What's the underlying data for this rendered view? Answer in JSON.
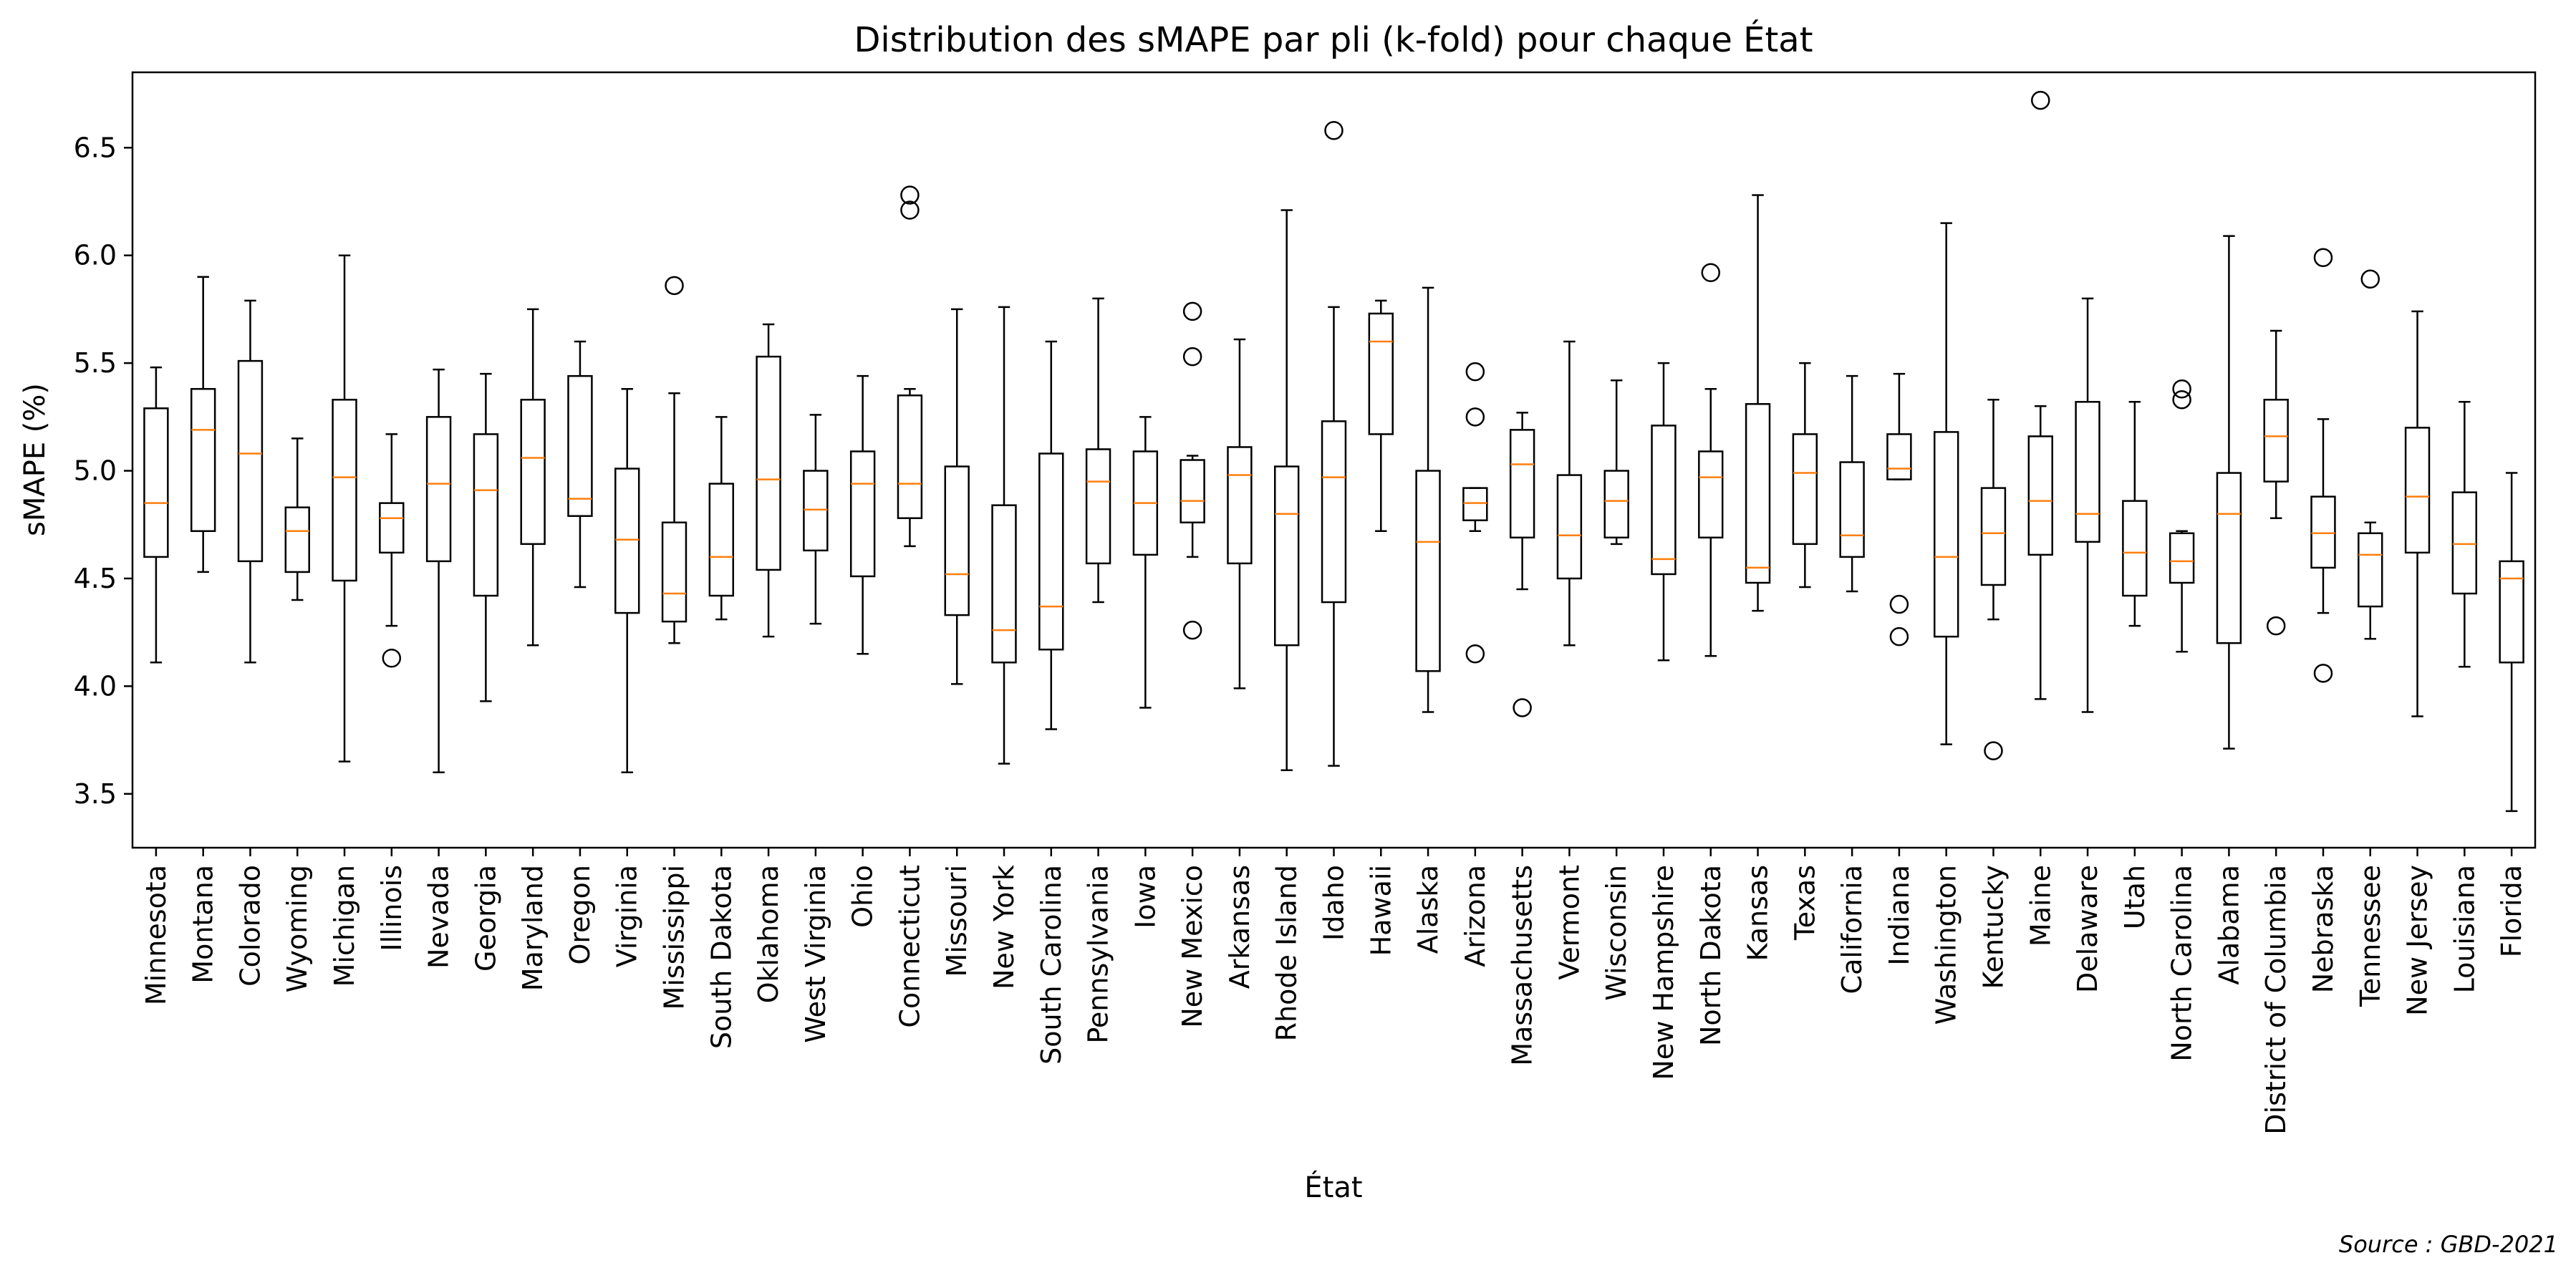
{
  "chart_data": {
    "type": "boxplot",
    "title": "Distribution des sMAPE par pli (k-fold) pour chaque État",
    "xlabel": "État",
    "ylabel": "sMAPE (%)",
    "source": "Source : GBD-2021",
    "ylim": [
      3.25,
      6.85
    ],
    "yticks": [
      3.5,
      4.0,
      4.5,
      5.0,
      5.5,
      6.0,
      6.5
    ],
    "ytick_labels": [
      "3.5",
      "4.0",
      "4.5",
      "5.0",
      "5.5",
      "6.0",
      "6.5"
    ],
    "grid": false,
    "colors": {
      "box": "#000000",
      "median": "#ff7f0e"
    },
    "boxes": [
      {
        "name": "Minnesota",
        "whislo": 4.11,
        "q1": 4.6,
        "med": 4.85,
        "q3": 5.29,
        "whishi": 5.48,
        "fliers": []
      },
      {
        "name": "Montana",
        "whislo": 4.53,
        "q1": 4.72,
        "med": 5.19,
        "q3": 5.38,
        "whishi": 5.9,
        "fliers": []
      },
      {
        "name": "Colorado",
        "whislo": 4.11,
        "q1": 4.58,
        "med": 5.08,
        "q3": 5.51,
        "whishi": 5.79,
        "fliers": []
      },
      {
        "name": "Wyoming",
        "whislo": 4.4,
        "q1": 4.53,
        "med": 4.72,
        "q3": 4.83,
        "whishi": 5.15,
        "fliers": []
      },
      {
        "name": "Michigan",
        "whislo": 3.65,
        "q1": 4.49,
        "med": 4.97,
        "q3": 5.33,
        "whishi": 6.0,
        "fliers": []
      },
      {
        "name": "Illinois",
        "whislo": 4.28,
        "q1": 4.62,
        "med": 4.78,
        "q3": 4.85,
        "whishi": 5.17,
        "fliers": [
          4.13
        ]
      },
      {
        "name": "Nevada",
        "whislo": 3.6,
        "q1": 4.58,
        "med": 4.94,
        "q3": 5.25,
        "whishi": 5.47,
        "fliers": []
      },
      {
        "name": "Georgia",
        "whislo": 3.93,
        "q1": 4.42,
        "med": 4.91,
        "q3": 5.17,
        "whishi": 5.45,
        "fliers": []
      },
      {
        "name": "Maryland",
        "whislo": 4.19,
        "q1": 4.66,
        "med": 5.06,
        "q3": 5.33,
        "whishi": 5.75,
        "fliers": []
      },
      {
        "name": "Oregon",
        "whislo": 4.46,
        "q1": 4.79,
        "med": 4.87,
        "q3": 5.44,
        "whishi": 5.6,
        "fliers": []
      },
      {
        "name": "Virginia",
        "whislo": 3.6,
        "q1": 4.34,
        "med": 4.68,
        "q3": 5.01,
        "whishi": 5.38,
        "fliers": []
      },
      {
        "name": "Mississippi",
        "whislo": 4.2,
        "q1": 4.3,
        "med": 4.43,
        "q3": 4.76,
        "whishi": 5.36,
        "fliers": [
          5.86
        ]
      },
      {
        "name": "South Dakota",
        "whislo": 4.31,
        "q1": 4.42,
        "med": 4.6,
        "q3": 4.94,
        "whishi": 5.25,
        "fliers": []
      },
      {
        "name": "Oklahoma",
        "whislo": 4.23,
        "q1": 4.54,
        "med": 4.96,
        "q3": 5.53,
        "whishi": 5.68,
        "fliers": []
      },
      {
        "name": "West Virginia",
        "whislo": 4.29,
        "q1": 4.63,
        "med": 4.82,
        "q3": 5.0,
        "whishi": 5.26,
        "fliers": []
      },
      {
        "name": "Ohio",
        "whislo": 4.15,
        "q1": 4.51,
        "med": 4.94,
        "q3": 5.09,
        "whishi": 5.44,
        "fliers": []
      },
      {
        "name": "Connecticut",
        "whislo": 4.65,
        "q1": 4.78,
        "med": 4.94,
        "q3": 5.35,
        "whishi": 5.38,
        "fliers": [
          6.21,
          6.28
        ]
      },
      {
        "name": "Missouri",
        "whislo": 4.01,
        "q1": 4.33,
        "med": 4.52,
        "q3": 5.02,
        "whishi": 5.75,
        "fliers": []
      },
      {
        "name": "New York",
        "whislo": 3.64,
        "q1": 4.11,
        "med": 4.26,
        "q3": 4.84,
        "whishi": 5.76,
        "fliers": []
      },
      {
        "name": "South Carolina",
        "whislo": 3.8,
        "q1": 4.17,
        "med": 4.37,
        "q3": 5.08,
        "whishi": 5.6,
        "fliers": []
      },
      {
        "name": "Pennsylvania",
        "whislo": 4.39,
        "q1": 4.57,
        "med": 4.95,
        "q3": 5.1,
        "whishi": 5.8,
        "fliers": []
      },
      {
        "name": "Iowa",
        "whislo": 3.9,
        "q1": 4.61,
        "med": 4.85,
        "q3": 5.09,
        "whishi": 5.25,
        "fliers": []
      },
      {
        "name": "New Mexico",
        "whislo": 4.6,
        "q1": 4.76,
        "med": 4.86,
        "q3": 5.05,
        "whishi": 5.07,
        "fliers": [
          4.26,
          5.53,
          5.74
        ]
      },
      {
        "name": "Arkansas",
        "whislo": 3.99,
        "q1": 4.57,
        "med": 4.98,
        "q3": 5.11,
        "whishi": 5.61,
        "fliers": []
      },
      {
        "name": "Rhode Island",
        "whislo": 3.61,
        "q1": 4.19,
        "med": 4.8,
        "q3": 5.02,
        "whishi": 6.21,
        "fliers": []
      },
      {
        "name": "Idaho",
        "whislo": 3.63,
        "q1": 4.39,
        "med": 4.97,
        "q3": 5.23,
        "whishi": 5.76,
        "fliers": [
          6.58
        ]
      },
      {
        "name": "Hawaii",
        "whislo": 4.72,
        "q1": 5.17,
        "med": 5.6,
        "q3": 5.73,
        "whishi": 5.79,
        "fliers": []
      },
      {
        "name": "Alaska",
        "whislo": 3.88,
        "q1": 4.07,
        "med": 4.67,
        "q3": 5.0,
        "whishi": 5.85,
        "fliers": []
      },
      {
        "name": "Arizona",
        "whislo": 4.72,
        "q1": 4.77,
        "med": 4.85,
        "q3": 4.92,
        "whishi": 4.92,
        "fliers": [
          4.15,
          5.25,
          5.46
        ]
      },
      {
        "name": "Massachusetts",
        "whislo": 4.45,
        "q1": 4.69,
        "med": 5.03,
        "q3": 5.19,
        "whishi": 5.27,
        "fliers": [
          3.9
        ]
      },
      {
        "name": "Vermont",
        "whislo": 4.19,
        "q1": 4.5,
        "med": 4.7,
        "q3": 4.98,
        "whishi": 5.6,
        "fliers": []
      },
      {
        "name": "Wisconsin",
        "whislo": 4.66,
        "q1": 4.69,
        "med": 4.86,
        "q3": 5.0,
        "whishi": 5.42,
        "fliers": []
      },
      {
        "name": "New Hampshire",
        "whislo": 4.12,
        "q1": 4.52,
        "med": 4.59,
        "q3": 5.21,
        "whishi": 5.5,
        "fliers": []
      },
      {
        "name": "North Dakota",
        "whislo": 4.14,
        "q1": 4.69,
        "med": 4.97,
        "q3": 5.09,
        "whishi": 5.38,
        "fliers": [
          5.92
        ]
      },
      {
        "name": "Kansas",
        "whislo": 4.35,
        "q1": 4.48,
        "med": 4.55,
        "q3": 5.31,
        "whishi": 6.28,
        "fliers": []
      },
      {
        "name": "Texas",
        "whislo": 4.46,
        "q1": 4.66,
        "med": 4.99,
        "q3": 5.17,
        "whishi": 5.5,
        "fliers": []
      },
      {
        "name": "California",
        "whislo": 4.44,
        "q1": 4.6,
        "med": 4.7,
        "q3": 5.04,
        "whishi": 5.44,
        "fliers": []
      },
      {
        "name": "Indiana",
        "whislo": 4.96,
        "q1": 4.96,
        "med": 5.01,
        "q3": 5.17,
        "whishi": 5.45,
        "fliers": [
          4.23,
          4.38
        ]
      },
      {
        "name": "Washington",
        "whislo": 3.73,
        "q1": 4.23,
        "med": 4.6,
        "q3": 5.18,
        "whishi": 6.15,
        "fliers": []
      },
      {
        "name": "Kentucky",
        "whislo": 4.31,
        "q1": 4.47,
        "med": 4.71,
        "q3": 4.92,
        "whishi": 5.33,
        "fliers": [
          3.7
        ]
      },
      {
        "name": "Maine",
        "whislo": 3.94,
        "q1": 4.61,
        "med": 4.86,
        "q3": 5.16,
        "whishi": 5.3,
        "fliers": [
          6.72
        ]
      },
      {
        "name": "Delaware",
        "whislo": 3.88,
        "q1": 4.67,
        "med": 4.8,
        "q3": 5.32,
        "whishi": 5.8,
        "fliers": []
      },
      {
        "name": "Utah",
        "whislo": 4.28,
        "q1": 4.42,
        "med": 4.62,
        "q3": 4.86,
        "whishi": 5.32,
        "fliers": []
      },
      {
        "name": "North Carolina",
        "whislo": 4.16,
        "q1": 4.48,
        "med": 4.58,
        "q3": 4.71,
        "whishi": 4.72,
        "fliers": [
          5.33,
          5.38
        ]
      },
      {
        "name": "Alabama",
        "whislo": 3.71,
        "q1": 4.2,
        "med": 4.8,
        "q3": 4.99,
        "whishi": 6.09,
        "fliers": []
      },
      {
        "name": "District of Columbia",
        "whislo": 4.78,
        "q1": 4.95,
        "med": 5.16,
        "q3": 5.33,
        "whishi": 5.65,
        "fliers": [
          4.28
        ]
      },
      {
        "name": "Nebraska",
        "whislo": 4.34,
        "q1": 4.55,
        "med": 4.71,
        "q3": 4.88,
        "whishi": 5.24,
        "fliers": [
          4.06,
          5.99
        ]
      },
      {
        "name": "Tennessee",
        "whislo": 4.22,
        "q1": 4.37,
        "med": 4.61,
        "q3": 4.71,
        "whishi": 4.76,
        "fliers": [
          5.89
        ]
      },
      {
        "name": "New Jersey",
        "whislo": 3.86,
        "q1": 4.62,
        "med": 4.88,
        "q3": 5.2,
        "whishi": 5.74,
        "fliers": []
      },
      {
        "name": "Louisiana",
        "whislo": 4.09,
        "q1": 4.43,
        "med": 4.66,
        "q3": 4.9,
        "whishi": 5.32,
        "fliers": []
      },
      {
        "name": "Florida",
        "whislo": 3.42,
        "q1": 4.11,
        "med": 4.5,
        "q3": 4.58,
        "whishi": 4.99,
        "fliers": []
      }
    ]
  }
}
